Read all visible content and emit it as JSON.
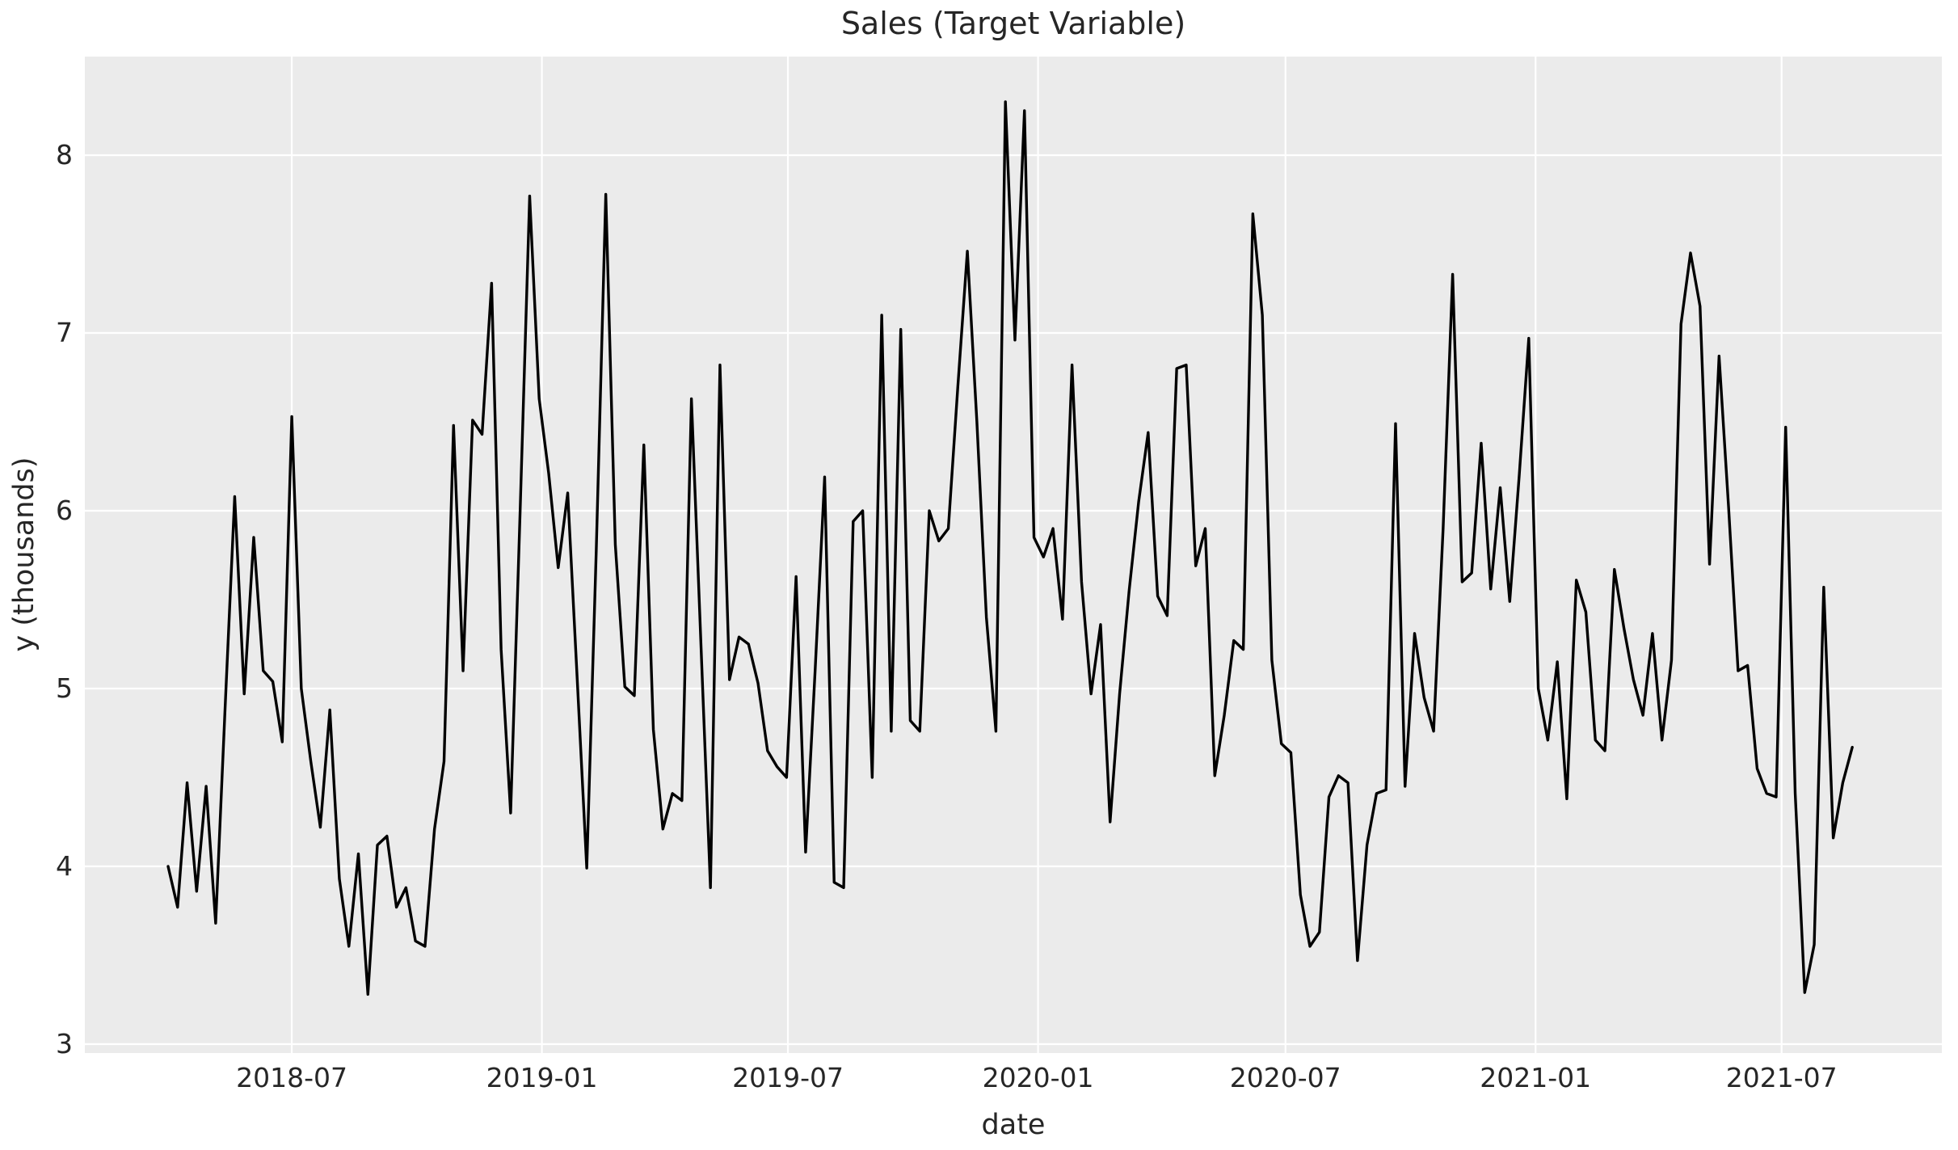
{
  "chart_data": {
    "type": "line",
    "title": "Sales (Target Variable)",
    "xlabel": "date",
    "ylabel": "y (thousands)",
    "legend": null,
    "grid": true,
    "x_start_date": "2018-04-01",
    "frequency": "weekly",
    "x_tick_labels": [
      "2018-07",
      "2019-01",
      "2019-07",
      "2020-01",
      "2020-07",
      "2021-01",
      "2021-07"
    ],
    "y_tick_labels": [
      "3",
      "4",
      "5",
      "6",
      "7",
      "8"
    ],
    "y_ticks": [
      3,
      4,
      5,
      6,
      7,
      8
    ],
    "ylim": [
      2.95,
      8.56
    ],
    "series_name": "sales",
    "values": [
      4.0,
      3.77,
      4.47,
      3.86,
      4.45,
      3.68,
      4.9,
      6.08,
      4.97,
      5.85,
      5.1,
      5.04,
      4.7,
      6.53,
      5.0,
      4.59,
      4.22,
      4.88,
      3.93,
      3.55,
      4.07,
      3.28,
      4.12,
      4.17,
      3.77,
      3.88,
      3.58,
      3.55,
      4.21,
      4.59,
      6.48,
      5.1,
      6.51,
      6.43,
      7.28,
      5.22,
      4.3,
      6.0,
      7.77,
      6.63,
      6.21,
      5.68,
      6.1,
      5.05,
      3.99,
      5.78,
      7.78,
      5.81,
      5.01,
      4.96,
      6.37,
      4.77,
      4.21,
      4.41,
      4.37,
      6.63,
      5.25,
      3.88,
      6.82,
      5.05,
      5.29,
      5.25,
      5.03,
      4.65,
      4.56,
      4.5,
      5.63,
      4.08,
      5.1,
      6.19,
      3.91,
      3.88,
      5.94,
      6.0,
      4.5,
      7.1,
      4.76,
      7.02,
      4.82,
      4.76,
      6.0,
      5.83,
      5.9,
      6.7,
      7.46,
      6.5,
      5.4,
      4.76,
      8.3,
      6.96,
      8.25,
      5.85,
      5.74,
      5.9,
      5.39,
      6.82,
      5.6,
      4.97,
      5.36,
      4.25,
      4.97,
      5.55,
      6.05,
      6.44,
      5.52,
      5.41,
      6.8,
      6.82,
      5.69,
      5.9,
      4.51,
      4.85,
      5.27,
      5.22,
      7.67,
      7.1,
      5.16,
      4.69,
      4.64,
      3.84,
      3.55,
      3.63,
      4.39,
      4.51,
      4.47,
      3.47,
      4.12,
      4.41,
      4.43,
      6.49,
      4.45,
      5.31,
      4.95,
      4.76,
      5.9,
      7.33,
      5.6,
      5.65,
      6.38,
      5.56,
      6.13,
      5.49,
      6.2,
      6.97,
      5.0,
      4.71,
      5.15,
      4.38,
      5.61,
      5.43,
      4.71,
      4.65,
      5.67,
      5.34,
      5.05,
      4.85,
      5.31,
      4.71,
      5.16,
      7.05,
      7.45,
      7.15,
      5.7,
      6.87,
      6.02,
      5.1,
      5.13,
      4.55,
      4.41,
      4.39,
      6.47,
      4.41,
      3.29,
      3.56,
      5.57,
      4.16,
      4.47,
      4.67
    ],
    "colors": {
      "line": "#000000",
      "plot_background": "#ebebeb",
      "figure_background": "#ffffff",
      "grid": "#ffffff",
      "text": "#262626"
    }
  }
}
